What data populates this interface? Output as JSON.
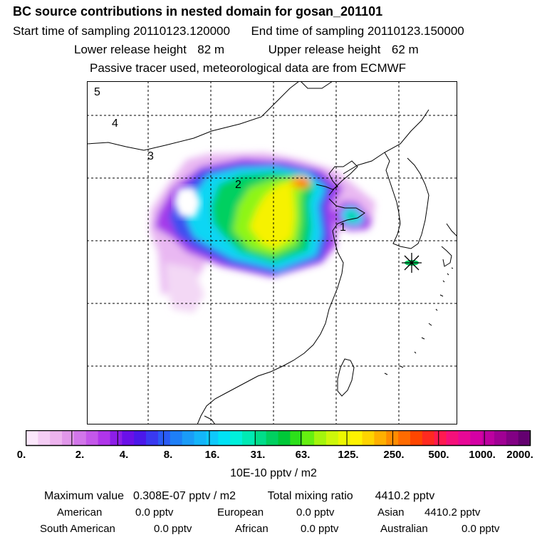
{
  "header": {
    "title": "BC  source contributions in nested domain for gosan_201101",
    "start_label": "Start time of sampling",
    "start_value": "20110123.120000",
    "end_label": "End time of sampling",
    "end_value": "20110123.150000",
    "lower_label": "Lower release height",
    "lower_value": "82 m",
    "upper_label": "Upper release height",
    "upper_value": "62 m",
    "tracer_note": "Passive tracer used, meteorological data are from ECMWF"
  },
  "map": {
    "contour_labels": [
      "5",
      "4",
      "3",
      "2",
      "1"
    ],
    "receptor_marker": "star",
    "plume_colors_core": "#ffff00"
  },
  "colorbar": {
    "tick_labels": [
      "0.",
      "2.",
      "4.",
      "8.",
      "16.",
      "31.",
      "63.",
      "125.",
      "250.",
      "500.",
      "1000.",
      "2000."
    ],
    "units": "10E-10 pptv / m2",
    "colors": [
      "#fbe7fb",
      "#f4cdf4",
      "#edb3ee",
      "#e197ea",
      "#d276ea",
      "#c457ea",
      "#b035ea",
      "#8d1ee8",
      "#6a10e8",
      "#4b18ea",
      "#3939f0",
      "#2a5cf5",
      "#1e7ff7",
      "#1a9cf8",
      "#14b5fa",
      "#0ec9fb",
      "#00e2f5",
      "#00f0dc",
      "#00eab4",
      "#00dd8a",
      "#00d060",
      "#00c838",
      "#2ce01a",
      "#66ef10",
      "#a4f50c",
      "#cdf70a",
      "#edf700",
      "#fff200",
      "#ffd400",
      "#ffb000",
      "#ff8c00",
      "#ff6b00",
      "#ff4600",
      "#ff2a20",
      "#ff1a50",
      "#f5107a",
      "#e80896",
      "#d400a4",
      "#bd00a0",
      "#a00094",
      "#820084",
      "#640070"
    ]
  },
  "stats": {
    "max_label": "Maximum value",
    "max_value": "0.308E-07 pptv / m2",
    "total_label": "Total mixing ratio",
    "total_value": "4410.2 pptv",
    "regions": [
      {
        "name": "American",
        "value": "0.0 pptv"
      },
      {
        "name": "European",
        "value": "0.0 pptv"
      },
      {
        "name": "Asian",
        "value": "4410.2 pptv"
      },
      {
        "name": "South American",
        "value": "0.0 pptv"
      },
      {
        "name": "African",
        "value": "0.0 pptv"
      },
      {
        "name": "Australian",
        "value": "0.0 pptv"
      }
    ]
  }
}
